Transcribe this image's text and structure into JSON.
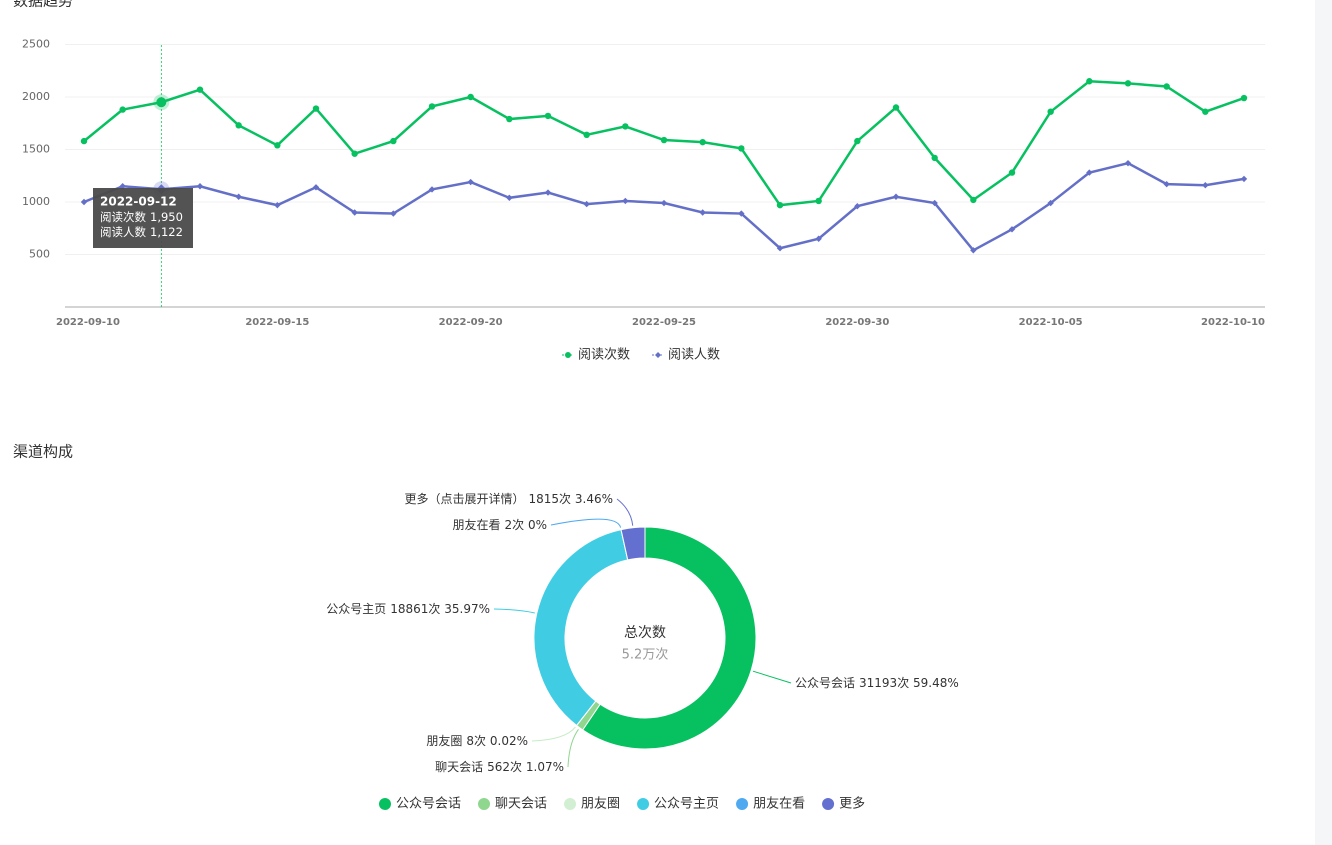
{
  "chart_data": [
    {
      "type": "line",
      "title": "数据趋势",
      "x": [
        "2022-09-10",
        "2022-09-11",
        "2022-09-12",
        "2022-09-13",
        "2022-09-14",
        "2022-09-15",
        "2022-09-16",
        "2022-09-17",
        "2022-09-18",
        "2022-09-19",
        "2022-09-20",
        "2022-09-21",
        "2022-09-22",
        "2022-09-23",
        "2022-09-24",
        "2022-09-25",
        "2022-09-26",
        "2022-09-27",
        "2022-09-28",
        "2022-09-29",
        "2022-09-30",
        "2022-10-01",
        "2022-10-02",
        "2022-10-03",
        "2022-10-04",
        "2022-10-05",
        "2022-10-06",
        "2022-10-07",
        "2022-10-08",
        "2022-10-09",
        "2022-10-10"
      ],
      "series": [
        {
          "name": "阅读次数",
          "color": "#07c160",
          "marker": "circle",
          "values": [
            1580,
            1880,
            1950,
            2070,
            1730,
            1540,
            1890,
            1460,
            1580,
            1910,
            2000,
            1790,
            1820,
            1640,
            1720,
            1590,
            1570,
            1510,
            970,
            1010,
            1580,
            1900,
            1420,
            1020,
            1280,
            1860,
            2150,
            2130,
            2100,
            1860,
            1990
          ]
        },
        {
          "name": "阅读人数",
          "color": "#6470c8",
          "marker": "diamond",
          "values": [
            1000,
            1150,
            1122,
            1150,
            1050,
            970,
            1140,
            900,
            890,
            1120,
            1190,
            1040,
            1090,
            980,
            1010,
            990,
            900,
            890,
            560,
            650,
            960,
            1050,
            990,
            540,
            740,
            990,
            1280,
            1370,
            1170,
            1160,
            1220
          ]
        }
      ],
      "ylim": [
        0,
        2500
      ],
      "yticks": [
        500,
        1000,
        1500,
        2000,
        2500
      ],
      "xticks": [
        "2022-09-10",
        "2022-09-15",
        "2022-09-20",
        "2022-09-25",
        "2022-09-30",
        "2022-10-05",
        "2022-10-10"
      ],
      "grid": true,
      "legend": "bottom",
      "tooltip": {
        "title": "2022-09-12",
        "value_labels": [
          "1,950",
          "1,122"
        ]
      }
    },
    {
      "type": "pie",
      "title": "渠道构成",
      "donut": true,
      "center_title": "总次数",
      "center_value": "5.2万次",
      "categories": [
        "公众号会话",
        "聊天会话",
        "朋友圈",
        "公众号主页",
        "朋友在看",
        "更多"
      ],
      "label_names": [
        "公众号会话",
        "聊天会话",
        "朋友圈",
        "公众号主页",
        "朋友在看",
        "更多（点击展开详情）"
      ],
      "values": [
        31193,
        562,
        8,
        18861,
        2,
        1815
      ],
      "value_labels": [
        "31193次 59.48%",
        "562次 1.07%",
        "8次 0.02%",
        "18861次 35.97%",
        "2次 0%",
        "1815次 3.46%"
      ],
      "colors": [
        "#07c160",
        "#8fd68f",
        "#d3efd3",
        "#40cde3",
        "#4fa9f0",
        "#6470d0"
      ],
      "legend": "bottom"
    }
  ]
}
